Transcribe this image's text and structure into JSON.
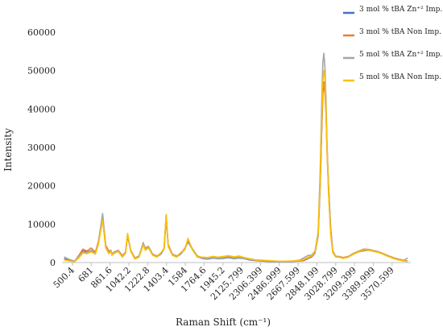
{
  "chart_data": {
    "type": "line",
    "xlabel": "Raman Shift (cm⁻¹)",
    "ylabel": "Intensity",
    "xlim": [
      400,
      3750
    ],
    "ylim": [
      0,
      60000
    ],
    "y_ticks": [
      0,
      10000,
      20000,
      30000,
      40000,
      50000,
      60000
    ],
    "x_tick_labels": [
      "500.4",
      "681",
      "861.6",
      "1042.2",
      "1222.8",
      "1403.4",
      "1584",
      "1764.6",
      "1945.2",
      "2125.799",
      "2306.399",
      "2486.999",
      "2667.599",
      "2848.199",
      "3028.799",
      "3209.399",
      "3389.999",
      "3570.599"
    ],
    "x_tick_values": [
      500.4,
      681,
      861.6,
      1042.2,
      1222.8,
      1403.4,
      1584,
      1764.6,
      1945.2,
      2125.799,
      2306.399,
      2486.999,
      2667.599,
      2848.199,
      3028.799,
      3209.399,
      3389.999,
      3570.599
    ],
    "grid": false,
    "legend_position": "top-right",
    "series": [
      {
        "name": "3 mol % tBA Zn⁺² Imp.",
        "color": "#4472C4",
        "x": [
          420,
          470,
          520,
          560,
          600,
          640,
          680,
          720,
          750,
          790,
          820,
          850,
          870,
          880,
          900,
          940,
          980,
          1010,
          1030,
          1060,
          1100,
          1140,
          1180,
          1200,
          1230,
          1270,
          1310,
          1350,
          1380,
          1400,
          1420,
          1460,
          1500,
          1540,
          1580,
          1610,
          1650,
          1700,
          1760,
          1800,
          1850,
          1900,
          1950,
          2000,
          2050,
          2100,
          2150,
          2200,
          2260,
          2320,
          2380,
          2440,
          2500,
          2560,
          2620,
          2680,
          2720,
          2760,
          2800,
          2830,
          2860,
          2880,
          2895,
          2905,
          2915,
          2925,
          2935,
          2945,
          2960,
          2980,
          3000,
          3030,
          3060,
          3100,
          3150,
          3200,
          3250,
          3300,
          3350,
          3390,
          3430,
          3480,
          3530,
          3580,
          3630,
          3680,
          3720
        ],
        "values": [
          1000,
          600,
          300,
          1500,
          3000,
          2800,
          3000,
          2500,
          5000,
          11500,
          4000,
          2500,
          3000,
          2000,
          2500,
          3000,
          1500,
          2500,
          7000,
          3000,
          1000,
          1500,
          4800,
          3500,
          4000,
          2000,
          1500,
          2200,
          3500,
          11500,
          4500,
          2000,
          1500,
          2200,
          3500,
          5500,
          3500,
          1500,
          1000,
          900,
          1200,
          1000,
          1100,
          1300,
          1000,
          1200,
          1000,
          700,
          500,
          400,
          300,
          250,
          200,
          250,
          300,
          400,
          500,
          1000,
          1500,
          2500,
          7000,
          20000,
          35000,
          44000,
          47000,
          45000,
          40000,
          30000,
          20000,
          9000,
          3000,
          1500,
          1500,
          1200,
          1500,
          2200,
          2800,
          3100,
          3200,
          3000,
          2800,
          2300,
          1700,
          1200,
          800,
          500,
          300
        ]
      },
      {
        "name": "3 mol % tBA Non Imp.",
        "color": "#ED7D31",
        "x": [
          420,
          470,
          520,
          560,
          600,
          640,
          680,
          720,
          750,
          790,
          820,
          850,
          870,
          880,
          900,
          940,
          980,
          1010,
          1030,
          1060,
          1100,
          1140,
          1180,
          1200,
          1230,
          1270,
          1310,
          1350,
          1380,
          1400,
          1420,
          1460,
          1500,
          1540,
          1580,
          1610,
          1650,
          1700,
          1760,
          1800,
          1850,
          1900,
          1950,
          2000,
          2050,
          2100,
          2150,
          2200,
          2260,
          2320,
          2380,
          2440,
          2500,
          2560,
          2620,
          2680,
          2720,
          2760,
          2800,
          2830,
          2860,
          2880,
          2895,
          2905,
          2915,
          2925,
          2935,
          2945,
          2960,
          2980,
          3000,
          3030,
          3060,
          3100,
          3150,
          3200,
          3250,
          3300,
          3350,
          3390,
          3430,
          3480,
          3530,
          3580,
          3630,
          3680,
          3720
        ],
        "values": [
          800,
          500,
          300,
          1800,
          3500,
          3000,
          3800,
          2700,
          5500,
          12000,
          4500,
          3000,
          3200,
          2200,
          2700,
          3200,
          1800,
          2700,
          7200,
          3200,
          1200,
          1700,
          5000,
          3800,
          4200,
          2200,
          1700,
          2400,
          3700,
          12000,
          4700,
          2200,
          1700,
          2400,
          3700,
          5800,
          3700,
          1700,
          1200,
          1000,
          1400,
          1100,
          1300,
          1500,
          1200,
          1400,
          1100,
          800,
          600,
          500,
          400,
          300,
          250,
          300,
          350,
          450,
          600,
          1100,
          1600,
          2700,
          7500,
          21000,
          36000,
          45500,
          46500,
          44000,
          39000,
          29000,
          19000,
          8500,
          3000,
          1600,
          1600,
          1300,
          1600,
          2400,
          3000,
          3500,
          3400,
          3100,
          2900,
          2400,
          1800,
          1300,
          900,
          600,
          400
        ]
      },
      {
        "name": "5 mol % tBA Zn⁺² Imp.",
        "color": "#A5A5A5",
        "x": [
          420,
          470,
          520,
          560,
          600,
          640,
          680,
          720,
          750,
          790,
          820,
          850,
          870,
          880,
          900,
          940,
          980,
          1010,
          1030,
          1060,
          1100,
          1140,
          1180,
          1200,
          1230,
          1270,
          1310,
          1350,
          1380,
          1400,
          1420,
          1460,
          1500,
          1540,
          1580,
          1610,
          1650,
          1700,
          1760,
          1800,
          1850,
          1900,
          1950,
          2000,
          2050,
          2100,
          2150,
          2200,
          2260,
          2320,
          2380,
          2440,
          2500,
          2560,
          2620,
          2680,
          2720,
          2760,
          2800,
          2830,
          2860,
          2880,
          2895,
          2905,
          2915,
          2925,
          2935,
          2945,
          2960,
          2980,
          3000,
          3030,
          3060,
          3100,
          3150,
          3200,
          3250,
          3300,
          3350,
          3390,
          3430,
          3480,
          3530,
          3580,
          3630,
          3680,
          3720
        ],
        "values": [
          1500,
          800,
          400,
          1500,
          2800,
          2600,
          3200,
          2400,
          5200,
          12800,
          4200,
          2600,
          3100,
          2100,
          2600,
          3100,
          1600,
          2600,
          7400,
          3100,
          1100,
          1600,
          5200,
          3600,
          4100,
          2100,
          1600,
          2300,
          3600,
          12500,
          4600,
          2100,
          1600,
          2300,
          3600,
          6000,
          3600,
          1600,
          1100,
          1000,
          1300,
          1100,
          1200,
          1400,
          1100,
          1300,
          1000,
          800,
          600,
          500,
          400,
          300,
          250,
          300,
          400,
          600,
          1200,
          1800,
          2000,
          3000,
          8000,
          24000,
          42000,
          52000,
          54500,
          51000,
          43000,
          31000,
          19000,
          8000,
          2800,
          1500,
          1500,
          1200,
          1500,
          2300,
          2900,
          3400,
          3300,
          3000,
          2800,
          2300,
          1700,
          1200,
          800,
          500,
          1200
        ]
      },
      {
        "name": "5 mol % tBA Non Imp.",
        "color": "#FFC000",
        "x": [
          420,
          470,
          520,
          560,
          600,
          640,
          680,
          720,
          750,
          790,
          820,
          850,
          870,
          880,
          900,
          940,
          980,
          1010,
          1030,
          1060,
          1100,
          1140,
          1180,
          1200,
          1230,
          1270,
          1310,
          1350,
          1380,
          1400,
          1420,
          1460,
          1500,
          1540,
          1580,
          1610,
          1650,
          1700,
          1760,
          1800,
          1850,
          1900,
          1950,
          2000,
          2050,
          2100,
          2150,
          2200,
          2260,
          2320,
          2380,
          2440,
          2500,
          2560,
          2620,
          2680,
          2720,
          2760,
          2800,
          2830,
          2860,
          2880,
          2895,
          2905,
          2915,
          2925,
          2935,
          2945,
          2960,
          2980,
          3000,
          3030,
          3060,
          3100,
          3150,
          3200,
          3250,
          3300,
          3350,
          3390,
          3430,
          3480,
          3530,
          3580,
          3630,
          3680,
          3720
        ],
        "values": [
          700,
          400,
          200,
          1200,
          2500,
          2300,
          2800,
          2200,
          4800,
          11000,
          3800,
          2300,
          2900,
          1900,
          2400,
          2900,
          1400,
          2400,
          7600,
          2900,
          900,
          1400,
          4600,
          3200,
          3800,
          1900,
          1400,
          2600,
          3400,
          12500,
          4200,
          1900,
          1400,
          2600,
          3300,
          6300,
          3400,
          1400,
          1400,
          1300,
          1600,
          1400,
          1600,
          1800,
          1500,
          1700,
          1300,
          1000,
          700,
          600,
          500,
          400,
          300,
          350,
          400,
          500,
          800,
          1300,
          1800,
          2800,
          7500,
          22000,
          38000,
          47000,
          50000,
          48000,
          40000,
          30000,
          18000,
          7500,
          2600,
          1400,
          1400,
          1100,
          1400,
          2200,
          2800,
          3300,
          3200,
          2900,
          2700,
          2200,
          1600,
          1100,
          700,
          400,
          300
        ]
      }
    ]
  }
}
